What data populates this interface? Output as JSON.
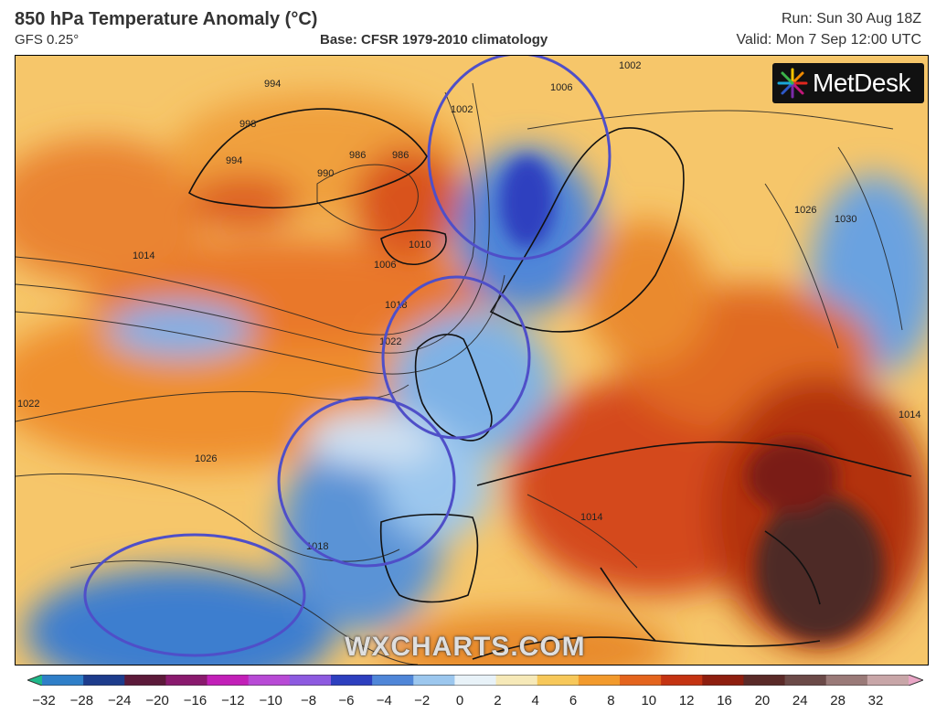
{
  "header": {
    "title": "850 hPa Temperature Anomaly (°C)",
    "model": "GFS 0.25°",
    "base": "Base: CFSR 1979-2010 climatology",
    "run": "Run: Sun 30 Aug 18Z",
    "valid": "Valid: Mon 7 Sep 12:00 UTC"
  },
  "brand": {
    "name": "MetDesk",
    "icon": "metdesk-starburst-icon"
  },
  "watermark": "WXCHARTS.COM",
  "isobar_labels": [
    "994",
    "998",
    "994",
    "990",
    "986",
    "986",
    "1002",
    "1006",
    "1002",
    "1006",
    "1010",
    "1014",
    "1018",
    "1022",
    "1022",
    "1026",
    "1018",
    "1014",
    "1026",
    "1030",
    "1014"
  ],
  "annotations": [
    {
      "name": "scandinavia-circle",
      "color": "#4f4fc8"
    },
    {
      "name": "british-isles-circle",
      "color": "#4f4fc8"
    },
    {
      "name": "biscay-iberia-circle",
      "color": "#4f4fc8"
    },
    {
      "name": "atlantic-southwest-circle",
      "color": "#4f4fc8"
    }
  ],
  "colorbar": {
    "ticks": [
      "−32",
      "−28",
      "−24",
      "−20",
      "−16",
      "−12",
      "−10",
      "−8",
      "−6",
      "−4",
      "−2",
      "0",
      "2",
      "4",
      "6",
      "8",
      "10",
      "12",
      "16",
      "20",
      "24",
      "28",
      "32"
    ],
    "colors": [
      "#1fb98a",
      "#2f7fc8",
      "#1d3c8c",
      "#5c1a3a",
      "#8a1a6e",
      "#c21fb8",
      "#b84ad6",
      "#8d5ae0",
      "#2d3fbf",
      "#4f86d8",
      "#9cc7ee",
      "#e8f2f8",
      "#f6e9b8",
      "#f7c85a",
      "#f29a2c",
      "#e4641d",
      "#c43312",
      "#8e1e0f",
      "#5a2a28",
      "#6b4a48",
      "#9a7a78",
      "#c8a6a8",
      "#e9a6c6"
    ]
  }
}
